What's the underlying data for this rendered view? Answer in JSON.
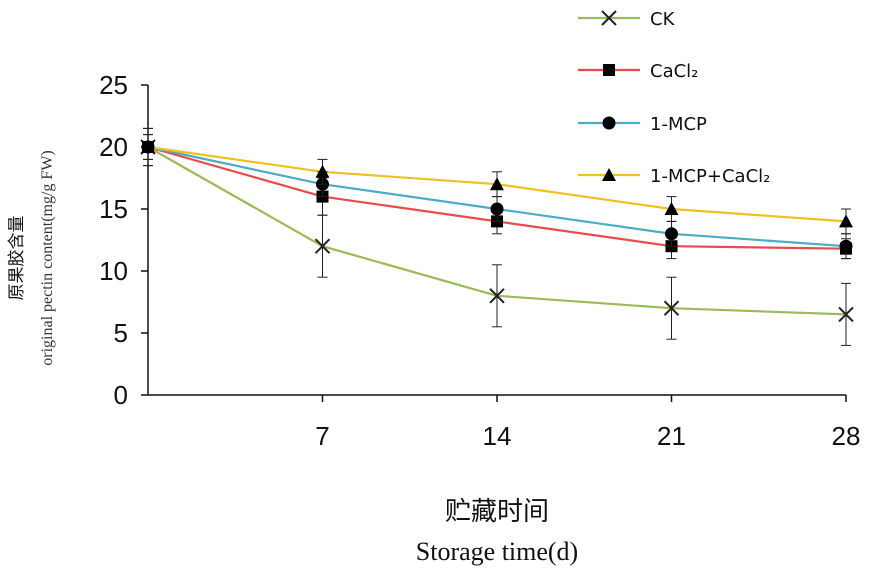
{
  "chart_data": {
    "type": "line",
    "x": [
      0,
      7,
      14,
      21,
      28
    ],
    "xtick_labels": [
      "7",
      "14",
      "21",
      "28"
    ],
    "ytick_labels": [
      "0",
      "5",
      "10",
      "15",
      "20",
      "25"
    ],
    "ylim": [
      0,
      25
    ],
    "xlim": [
      0,
      28
    ],
    "grid": false,
    "legend_position": "top-right",
    "xlabel_cn": "贮藏时间",
    "xlabel": "Storage time(d)",
    "ylabel_cn": "原果胶含量",
    "ylabel": "original pectin content(mg/g FW)",
    "series": [
      {
        "name": "CK",
        "marker": "x",
        "color": "#9bbb59",
        "values": [
          20,
          12,
          8,
          7,
          6.5
        ],
        "errors": [
          1.5,
          2.5,
          2.5,
          2.5,
          2.5
        ]
      },
      {
        "name": "CaCl₂",
        "marker": "square",
        "color": "#e84b4b",
        "values": [
          20,
          16,
          14,
          12,
          11.8
        ],
        "errors": [
          1.5,
          1.5,
          1,
          1,
          0.8
        ]
      },
      {
        "name": "1-MCP",
        "marker": "circle",
        "color": "#4bacc6",
        "values": [
          20,
          17,
          15,
          13,
          12
        ],
        "errors": [
          1,
          1,
          1,
          1,
          1
        ]
      },
      {
        "name": "1-MCP+CaCl₂",
        "marker": "triangle",
        "color": "#f0c020",
        "values": [
          20,
          18,
          17,
          15,
          14
        ],
        "errors": [
          1,
          1,
          1,
          1,
          1
        ]
      }
    ]
  }
}
